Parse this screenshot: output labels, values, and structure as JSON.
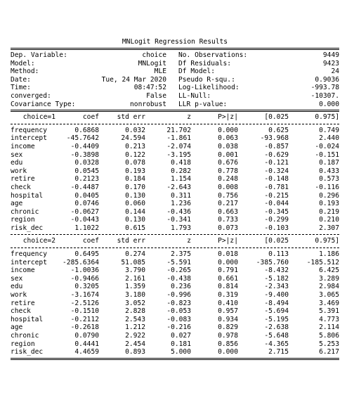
{
  "title": "MNLogit Regression Results",
  "header_left": [
    {
      "label": "Dep. Variable:",
      "value": "choice"
    },
    {
      "label": "Model:",
      "value": "MNLogit"
    },
    {
      "label": "Method:",
      "value": "MLE"
    },
    {
      "label": "Date:",
      "value": "Tue, 24 Mar 2020"
    },
    {
      "label": "Time:",
      "value": "08:47:52"
    },
    {
      "label": "converged:",
      "value": "False"
    },
    {
      "label": "Covariance Type:",
      "value": "nonrobust"
    }
  ],
  "header_right": [
    {
      "label": "No. Observations:",
      "value": "9449"
    },
    {
      "label": "Df Residuals:",
      "value": "9423"
    },
    {
      "label": "Df Model:",
      "value": "24"
    },
    {
      "label": "Pseudo R-squ.:",
      "value": "0.9036"
    },
    {
      "label": "Log-Likelihood:",
      "value": "-993.78"
    },
    {
      "label": "LL-Null:",
      "value": "-10307."
    },
    {
      "label": "LLR p-value:",
      "value": "0.000"
    }
  ],
  "columns": [
    "coef",
    "std err",
    "z",
    "P>|z|",
    "[0.025",
    "0.975]"
  ],
  "blocks": [
    {
      "label": "choice=1",
      "rows": [
        [
          "frequency",
          "0.6868",
          "0.032",
          "21.702",
          "0.000",
          "0.625",
          "0.749"
        ],
        [
          "intercept",
          "-45.7642",
          "24.594",
          "-1.861",
          "0.063",
          "-93.968",
          "2.440"
        ],
        [
          "income",
          "-0.4409",
          "0.213",
          "-2.074",
          "0.038",
          "-0.857",
          "-0.024"
        ],
        [
          "sex",
          "-0.3898",
          "0.122",
          "-3.195",
          "0.001",
          "-0.629",
          "-0.151"
        ],
        [
          "edu",
          "0.0328",
          "0.078",
          "0.418",
          "0.676",
          "-0.121",
          "0.187"
        ],
        [
          "work",
          "0.0545",
          "0.193",
          "0.282",
          "0.778",
          "-0.324",
          "0.433"
        ],
        [
          "retire",
          "0.2123",
          "0.184",
          "1.154",
          "0.248",
          "-0.148",
          "0.573"
        ],
        [
          "check",
          "-0.4487",
          "0.170",
          "-2.643",
          "0.008",
          "-0.781",
          "-0.116"
        ],
        [
          "hospital",
          "0.0405",
          "0.130",
          "0.311",
          "0.756",
          "-0.215",
          "0.296"
        ],
        [
          "age",
          "0.0746",
          "0.060",
          "1.236",
          "0.217",
          "-0.044",
          "0.193"
        ],
        [
          "chronic",
          "-0.0627",
          "0.144",
          "-0.436",
          "0.663",
          "-0.345",
          "0.219"
        ],
        [
          "region",
          "-0.0443",
          "0.130",
          "-0.341",
          "0.733",
          "-0.299",
          "0.210"
        ],
        [
          "risk_dec",
          "1.1022",
          "0.615",
          "1.793",
          "0.073",
          "-0.103",
          "2.307"
        ]
      ]
    },
    {
      "label": "choice=2",
      "rows": [
        [
          "frequency",
          "0.6495",
          "0.274",
          "2.375",
          "0.018",
          "0.113",
          "1.186"
        ],
        [
          "intercept",
          "-285.6364",
          "51.085",
          "-5.591",
          "0.000",
          "-385.760",
          "-185.512"
        ],
        [
          "income",
          "-1.0036",
          "3.790",
          "-0.265",
          "0.791",
          "-8.432",
          "6.425"
        ],
        [
          "sex",
          "-0.9466",
          "2.161",
          "-0.438",
          "0.661",
          "-5.182",
          "3.289"
        ],
        [
          "edu",
          "0.3205",
          "1.359",
          "0.236",
          "0.814",
          "-2.343",
          "2.984"
        ],
        [
          "work",
          "-3.1674",
          "3.180",
          "-0.996",
          "0.319",
          "-9.400",
          "3.065"
        ],
        [
          "retire",
          "-2.5126",
          "3.052",
          "-0.823",
          "0.410",
          "-8.494",
          "3.469"
        ],
        [
          "check",
          "-0.1510",
          "2.828",
          "-0.053",
          "0.957",
          "-5.694",
          "5.391"
        ],
        [
          "hospital",
          "-0.2112",
          "2.543",
          "-0.083",
          "0.934",
          "-5.195",
          "4.773"
        ],
        [
          "age",
          "-0.2618",
          "1.212",
          "-0.216",
          "0.829",
          "-2.638",
          "2.114"
        ],
        [
          "chronic",
          "0.0790",
          "2.922",
          "0.027",
          "0.978",
          "-5.648",
          "5.806"
        ],
        [
          "region",
          "0.4441",
          "2.454",
          "0.181",
          "0.856",
          "-4.365",
          "5.253"
        ],
        [
          "risk_dec",
          "4.4659",
          "0.893",
          "5.000",
          "0.000",
          "2.715",
          "6.217"
        ]
      ]
    }
  ]
}
